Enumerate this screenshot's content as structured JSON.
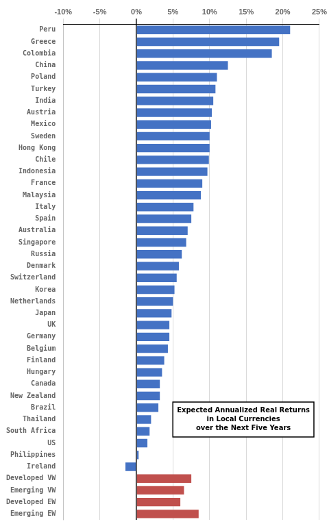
{
  "chart_data": {
    "type": "bar",
    "orientation": "horizontal",
    "annotation": "Expected Annualized Real Returns\nin Local Currencies\nover the Next Five Years",
    "categories": [
      "Peru",
      "Greece",
      "Colombia",
      "China",
      "Poland",
      "Turkey",
      "India",
      "Austria",
      "Mexico",
      "Sweden",
      "Hong Kong",
      "Chile",
      "Indonesia",
      "France",
      "Malaysia",
      "Italy",
      "Spain",
      "Australia",
      "Singapore",
      "Russia",
      "Denmark",
      "Switzerland",
      "Korea",
      "Netherlands",
      "Japan",
      "UK",
      "Germany",
      "Belgium",
      "Finland",
      "Hungary",
      "Canada",
      "New Zealand",
      "Brazil",
      "Thailand",
      "South Africa",
      "US",
      "Philippines",
      "Ireland",
      "Developed VW",
      "Emerging VW",
      "Developed EW",
      "Emerging EW"
    ],
    "values": [
      21.0,
      19.5,
      18.5,
      12.5,
      11.0,
      10.8,
      10.5,
      10.3,
      10.2,
      10.0,
      10.0,
      9.9,
      9.7,
      9.0,
      8.8,
      7.8,
      7.5,
      7.0,
      6.8,
      6.2,
      5.8,
      5.5,
      5.2,
      5.0,
      4.8,
      4.5,
      4.5,
      4.3,
      3.8,
      3.5,
      3.2,
      3.2,
      3.0,
      2.0,
      1.8,
      1.5,
      0.3,
      -1.5,
      7.5,
      6.5,
      6.0,
      8.5
    ],
    "colors": [
      "#4472C4",
      "#4472C4",
      "#4472C4",
      "#4472C4",
      "#4472C4",
      "#4472C4",
      "#4472C4",
      "#4472C4",
      "#4472C4",
      "#4472C4",
      "#4472C4",
      "#4472C4",
      "#4472C4",
      "#4472C4",
      "#4472C4",
      "#4472C4",
      "#4472C4",
      "#4472C4",
      "#4472C4",
      "#4472C4",
      "#4472C4",
      "#4472C4",
      "#4472C4",
      "#4472C4",
      "#4472C4",
      "#4472C4",
      "#4472C4",
      "#4472C4",
      "#4472C4",
      "#4472C4",
      "#4472C4",
      "#4472C4",
      "#4472C4",
      "#4472C4",
      "#4472C4",
      "#4472C4",
      "#4472C4",
      "#4472C4",
      "#C0504D",
      "#C0504D",
      "#C0504D",
      "#C0504D"
    ],
    "xlim": [
      -10,
      25
    ],
    "xticks": [
      {
        "value": -10,
        "label": "-10%"
      },
      {
        "value": -5,
        "label": "-5%"
      },
      {
        "value": 0,
        "label": "0%"
      },
      {
        "value": 5,
        "label": "5%"
      },
      {
        "value": 10,
        "label": "10%"
      },
      {
        "value": 15,
        "label": "15%"
      },
      {
        "value": 20,
        "label": "20%"
      },
      {
        "value": 25,
        "label": "25%"
      }
    ],
    "grid": true
  }
}
